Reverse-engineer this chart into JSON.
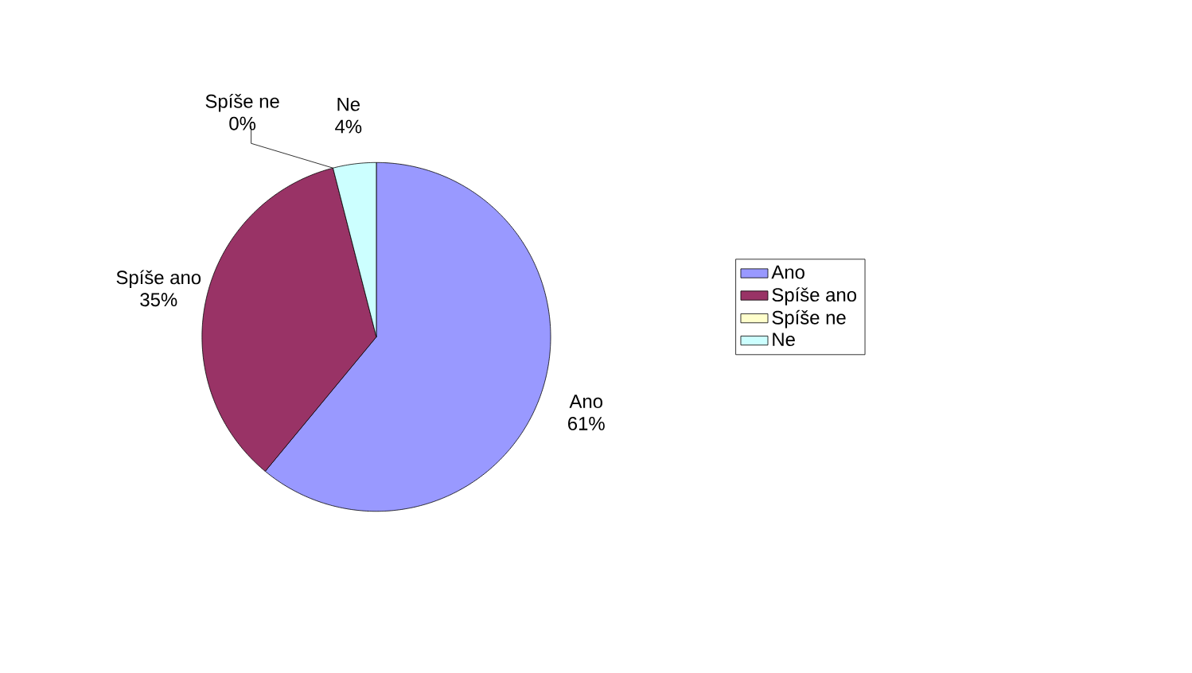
{
  "chart_data": {
    "type": "pie",
    "categories": [
      "Ano",
      "Spíše ano",
      "Spíše ne",
      "Ne"
    ],
    "values": [
      61,
      35,
      0,
      4
    ],
    "value_labels": [
      "61%",
      "35%",
      "0%",
      "4%"
    ],
    "colors": [
      "#9999ff",
      "#993366",
      "#ffffcc",
      "#ccffff"
    ],
    "legend": "right"
  }
}
